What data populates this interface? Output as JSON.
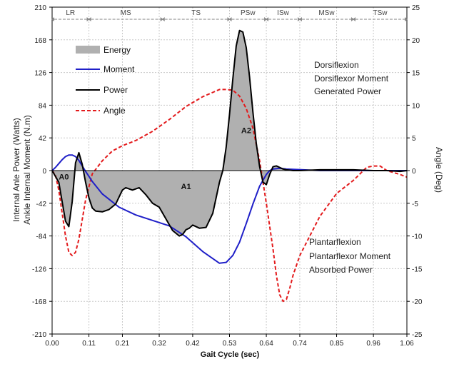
{
  "chart_data": {
    "type": "line",
    "xlabel": "Gait Cycle (sec)",
    "ylabel_left_1": "Internal Anle Power (Watts)",
    "ylabel_left_2": "Ankle Internal Moment (N.m)",
    "ylabel_right": "Angle (Deg)",
    "x_ticks": [
      "0.00",
      "0.11",
      "0.21",
      "0.32",
      "0.42",
      "0.53",
      "0.64",
      "0.74",
      "0.85",
      "0.96",
      "1.06"
    ],
    "x_tick_values": [
      0.0,
      0.11,
      0.21,
      0.32,
      0.42,
      0.53,
      0.64,
      0.74,
      0.85,
      0.96,
      1.06
    ],
    "xlim": [
      0,
      1.06
    ],
    "y_left_ticks": [
      "210",
      "168",
      "126",
      "84",
      "42",
      "0",
      "-42",
      "-84",
      "-126",
      "-168",
      "-210"
    ],
    "ylim_left": [
      -210,
      210
    ],
    "y_right_ticks": [
      "25",
      "20",
      "15",
      "10",
      "5",
      "0",
      "-5",
      "-10",
      "-15",
      "-20",
      "-25"
    ],
    "ylim_right": [
      -25,
      25
    ],
    "grid": true,
    "legend": [
      {
        "label": "Energy",
        "color": "#b0b0b0",
        "style": "fill"
      },
      {
        "label": "Moment",
        "color": "#1f1fc8",
        "style": "solid"
      },
      {
        "label": "Power",
        "color": "#000000",
        "style": "solid"
      },
      {
        "label": "Angle",
        "color": "#e31a1c",
        "style": "dashed"
      }
    ],
    "phases": [
      {
        "label": "LR",
        "start": 0.0,
        "end": 0.11
      },
      {
        "label": "MS",
        "start": 0.11,
        "end": 0.33
      },
      {
        "label": "TS",
        "start": 0.33,
        "end": 0.53
      },
      {
        "label": "PSw",
        "start": 0.53,
        "end": 0.64
      },
      {
        "label": "ISw",
        "start": 0.64,
        "end": 0.74
      },
      {
        "label": "MSw",
        "start": 0.74,
        "end": 0.9
      },
      {
        "label": "TSw",
        "start": 0.9,
        "end": 1.06
      }
    ],
    "annotations_top": [
      "Dorsiflexion",
      "Dorsiflexor Moment",
      "Generated Power"
    ],
    "annotations_bottom": [
      "Plantarflexion",
      "Plantarflexor Moment",
      "Absorbed Power"
    ],
    "area_labels": [
      {
        "label": "A0",
        "x": 0.035,
        "y": -8
      },
      {
        "label": "A1",
        "x": 0.4,
        "y": -20
      },
      {
        "label": "A2",
        "x": 0.58,
        "y": 52
      }
    ],
    "series": [
      {
        "name": "Power",
        "color": "#000000",
        "axis": "left",
        "x": [
          0.0,
          0.02,
          0.03,
          0.04,
          0.05,
          0.06,
          0.07,
          0.08,
          0.09,
          0.1,
          0.11,
          0.12,
          0.13,
          0.15,
          0.17,
          0.19,
          0.2,
          0.21,
          0.22,
          0.24,
          0.26,
          0.28,
          0.3,
          0.32,
          0.34,
          0.36,
          0.38,
          0.39,
          0.4,
          0.41,
          0.42,
          0.44,
          0.46,
          0.48,
          0.5,
          0.51,
          0.52,
          0.53,
          0.54,
          0.55,
          0.56,
          0.57,
          0.58,
          0.59,
          0.6,
          0.61,
          0.62,
          0.63,
          0.64,
          0.65,
          0.66,
          0.67,
          0.68,
          0.69,
          0.7,
          0.72,
          0.74,
          0.8,
          0.9,
          0.96,
          1.0,
          1.04,
          1.06
        ],
        "y": [
          0,
          -15,
          -40,
          -65,
          -72,
          -40,
          10,
          23,
          8,
          -15,
          -35,
          -48,
          -52,
          -53,
          -50,
          -43,
          -34,
          -25,
          -22,
          -25,
          -22,
          -31,
          -42,
          -47,
          -62,
          -77,
          -84,
          -82,
          -76,
          -74,
          -70,
          -74,
          -73,
          -55,
          -15,
          0,
          30,
          72,
          118,
          160,
          180,
          178,
          158,
          120,
          75,
          35,
          5,
          -15,
          -18,
          -5,
          5,
          6,
          4,
          2,
          1,
          0,
          0,
          1,
          1,
          0,
          0,
          -1,
          0
        ]
      },
      {
        "name": "Moment",
        "color": "#1f1fc8",
        "axis": "left",
        "x": [
          0.0,
          0.01,
          0.02,
          0.03,
          0.04,
          0.05,
          0.06,
          0.07,
          0.08,
          0.09,
          0.1,
          0.12,
          0.15,
          0.2,
          0.25,
          0.3,
          0.35,
          0.4,
          0.45,
          0.5,
          0.52,
          0.54,
          0.56,
          0.58,
          0.6,
          0.62,
          0.64,
          0.65,
          0.66,
          0.68,
          0.7,
          0.75,
          0.8,
          0.9,
          1.0,
          1.06
        ],
        "y": [
          0,
          4,
          9,
          14,
          18,
          20,
          20,
          18,
          13,
          6,
          -1,
          -14,
          -30,
          -47,
          -57,
          -64,
          -71,
          -85,
          -104,
          -119,
          -118,
          -109,
          -92,
          -68,
          -43,
          -20,
          -5,
          0,
          2,
          3,
          2,
          1,
          0,
          0,
          0,
          0
        ]
      },
      {
        "name": "Angle",
        "color": "#e31a1c",
        "axis": "right",
        "x": [
          0.0,
          0.01,
          0.02,
          0.03,
          0.04,
          0.05,
          0.06,
          0.07,
          0.08,
          0.09,
          0.1,
          0.12,
          0.15,
          0.18,
          0.21,
          0.25,
          0.3,
          0.35,
          0.4,
          0.45,
          0.5,
          0.52,
          0.54,
          0.56,
          0.58,
          0.6,
          0.62,
          0.64,
          0.65,
          0.66,
          0.67,
          0.68,
          0.69,
          0.7,
          0.71,
          0.72,
          0.74,
          0.77,
          0.8,
          0.85,
          0.9,
          0.94,
          0.96,
          0.98,
          1.0,
          1.02,
          1.04,
          1.06
        ],
        "y": [
          0,
          -0.7,
          -3,
          -6.5,
          -10,
          -12.5,
          -13,
          -12.5,
          -10.5,
          -7.5,
          -4.5,
          -0.5,
          1.5,
          3,
          3.8,
          4.6,
          6,
          7.8,
          9.8,
          11.3,
          12.4,
          12.4,
          12.3,
          11.4,
          9.5,
          6.5,
          1.5,
          -5,
          -8.5,
          -12,
          -16,
          -19,
          -20,
          -19.7,
          -18,
          -16,
          -13,
          -10,
          -7,
          -3.5,
          -1.5,
          0.5,
          0.7,
          0.7,
          0,
          -0.3,
          -0.6,
          -1
        ]
      }
    ]
  }
}
